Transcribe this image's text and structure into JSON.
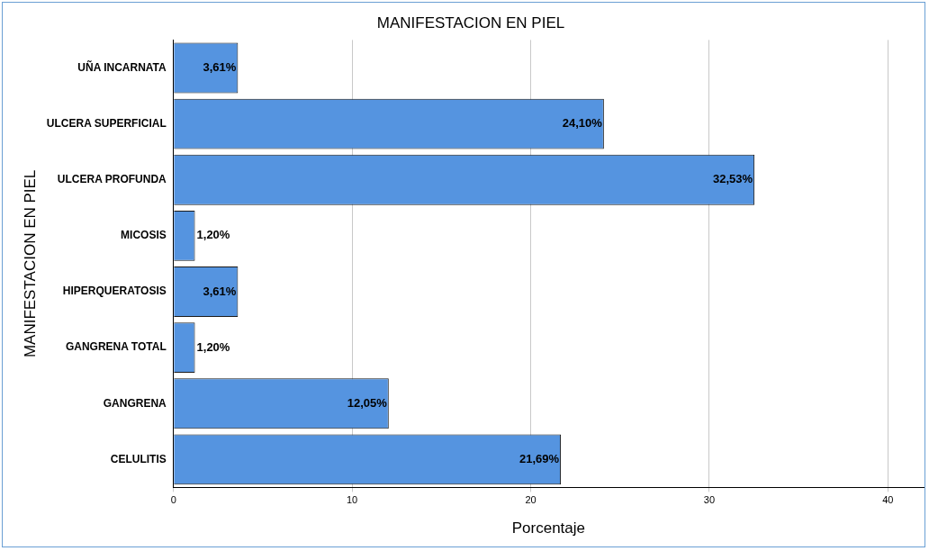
{
  "chart_data": {
    "type": "bar",
    "orientation": "horizontal",
    "title": "MANIFESTACION EN PIEL",
    "xlabel": "Porcentaje",
    "ylabel": "MANIFESTACION EN PIEL",
    "categories": [
      "UÑA INCARNATA",
      "ULCERA SUPERFICIAL",
      "ULCERA PROFUNDA",
      "MICOSIS",
      "HIPERQUERATOSIS",
      "GANGRENA TOTAL",
      "GANGRENA",
      "CELULITIS"
    ],
    "values": [
      3.61,
      24.1,
      32.53,
      1.2,
      3.61,
      1.2,
      12.05,
      21.69
    ],
    "value_labels": [
      "3,61%",
      "24,10%",
      "32,53%",
      "1,20%",
      "3,61%",
      "1,20%",
      "12,05%",
      "21,69%"
    ],
    "color": "#5594e0",
    "xlim": [
      0,
      42
    ],
    "xticks": [
      0,
      10,
      20,
      30,
      40
    ],
    "grid": "x"
  }
}
